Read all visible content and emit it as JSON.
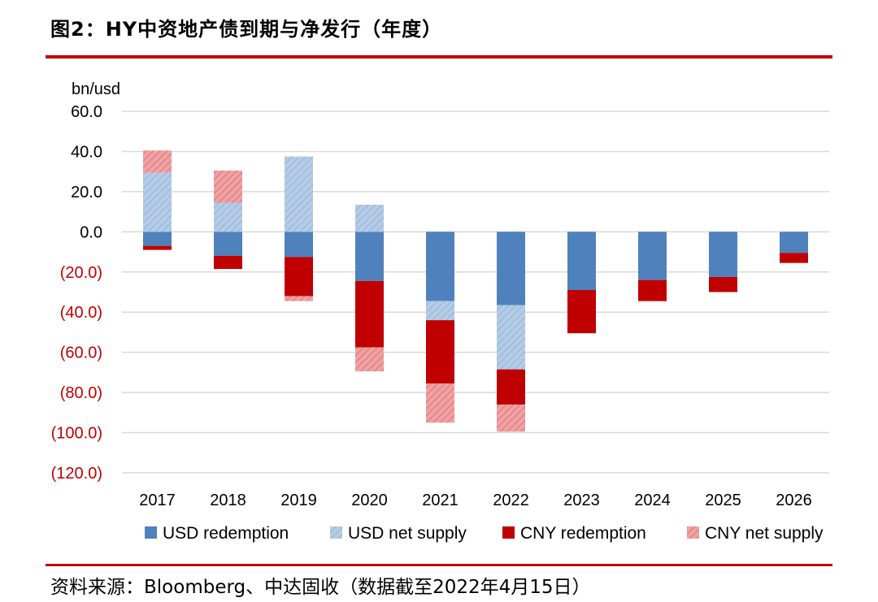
{
  "title": "图2：HY中资地产债到期与净发行（年度）",
  "source": "资料来源：Bloomberg、中达固收（数据截至2022年4月15日）",
  "chart_data": {
    "type": "bar",
    "stacked": true,
    "ylabel": "bn/usd",
    "ylim": [
      -120,
      60
    ],
    "yticks": [
      60,
      40,
      20,
      0,
      -20,
      -40,
      -60,
      -80,
      -100,
      -120
    ],
    "ytick_labels": [
      "60.0",
      "40.0",
      "20.0",
      "0.0",
      "(20.0)",
      "(40.0)",
      "(60.0)",
      "(80.0)",
      "(100.0)",
      "(120.0)"
    ],
    "categories": [
      "2017",
      "2018",
      "2019",
      "2020",
      "2021",
      "2022",
      "2023",
      "2024",
      "2025",
      "2026"
    ],
    "series": [
      {
        "name": "USD redemption",
        "color": "#4f81bd",
        "hatch": false,
        "values": [
          -7,
          -12,
          -12.5,
          -24.5,
          -34.5,
          -36.5,
          -29,
          -24,
          -22.5,
          -10.5
        ]
      },
      {
        "name": "USD net supply",
        "color": "#a7c1e0",
        "hatch": true,
        "values": [
          29.5,
          14.5,
          37.5,
          13.5,
          -9.5,
          -32,
          0,
          0,
          0,
          0
        ]
      },
      {
        "name": "CNY redemption",
        "color": "#c00000",
        "hatch": false,
        "values": [
          -2,
          -6.5,
          -19.5,
          -33,
          -31.5,
          -17.5,
          -21.5,
          -10.5,
          -7.5,
          -5
        ]
      },
      {
        "name": "CNY net supply",
        "color": "#e88789",
        "hatch": true,
        "values": [
          11,
          16,
          -2.5,
          -12,
          -19.5,
          -13.5,
          0,
          0,
          0,
          0
        ]
      }
    ],
    "legend_position": "bottom",
    "grid": true
  }
}
